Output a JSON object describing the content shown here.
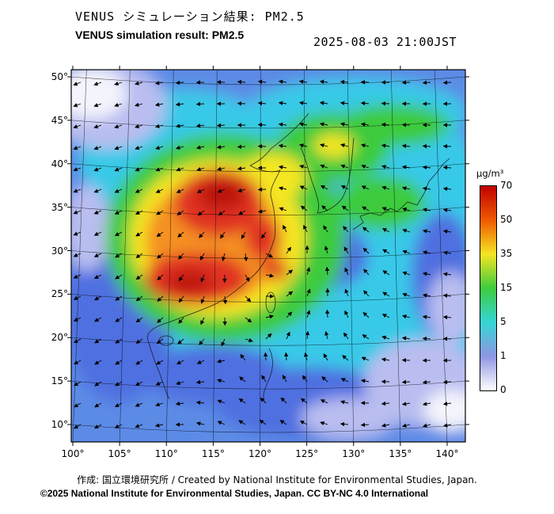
{
  "header": {
    "title_jp": "VENUS シミュレーション結果: PM2.5",
    "title_en": "VENUS simulation result: PM2.5",
    "datetime": "2025-08-03 21:00JST"
  },
  "axes": {
    "y_ticks": [
      "50°",
      "45°",
      "40°",
      "35°",
      "30°",
      "25°",
      "20°",
      "15°",
      "10°"
    ],
    "x_ticks": [
      "100°",
      "105°",
      "110°",
      "115°",
      "120°",
      "125°",
      "130°",
      "135°",
      "140°"
    ]
  },
  "colorbar": {
    "unit": "µg/m³",
    "tick_labels": [
      "70",
      "50",
      "35",
      "15",
      "5",
      "1",
      "0"
    ],
    "stops": [
      "#c00000",
      "#f05a00",
      "#f5e623",
      "#3ecb3e",
      "#35d6d6",
      "#8f96e3",
      "#ffffff"
    ]
  },
  "footer": {
    "credit": "作成: 国立環境研究所 / Created by National Institute for Environmental Studies, Japan.",
    "license": "©2025 National Institute for Environmental Studies, Japan. CC BY-NC 4.0 International"
  }
}
